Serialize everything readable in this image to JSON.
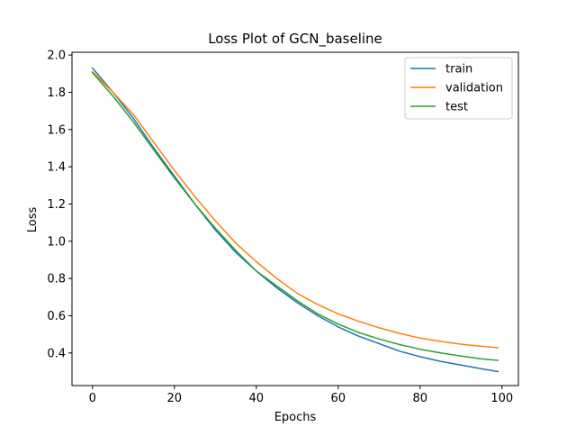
{
  "chart_data": {
    "type": "line",
    "title": "Loss Plot of GCN_baseline",
    "xlabel": "Epochs",
    "ylabel": "Loss",
    "xlim": [
      -5,
      104
    ],
    "ylim": [
      0.225,
      2.015
    ],
    "xticks": [
      0,
      20,
      40,
      60,
      80,
      100
    ],
    "yticks": [
      0.4,
      0.6,
      0.8,
      1.0,
      1.2,
      1.4,
      1.6,
      1.8,
      2.0
    ],
    "ytick_labels": [
      "0.4",
      "0.6",
      "0.8",
      "1.0",
      "1.2",
      "1.4",
      "1.6",
      "1.8",
      "2.0"
    ],
    "legend_position": "top-right",
    "grid": false,
    "series": [
      {
        "name": "train",
        "color": "#1f77b4",
        "x": [
          0,
          5,
          10,
          15,
          20,
          25,
          30,
          35,
          40,
          45,
          50,
          55,
          60,
          65,
          70,
          75,
          80,
          85,
          90,
          95,
          99
        ],
        "values": [
          1.93,
          1.8,
          1.66,
          1.5,
          1.35,
          1.2,
          1.06,
          0.94,
          0.84,
          0.75,
          0.67,
          0.6,
          0.54,
          0.49,
          0.45,
          0.41,
          0.38,
          0.355,
          0.335,
          0.315,
          0.3
        ]
      },
      {
        "name": "validation",
        "color": "#ff7f0e",
        "x": [
          0,
          5,
          10,
          15,
          20,
          25,
          30,
          35,
          40,
          45,
          50,
          55,
          60,
          65,
          70,
          75,
          80,
          85,
          90,
          95,
          99
        ],
        "values": [
          1.91,
          1.8,
          1.68,
          1.53,
          1.38,
          1.24,
          1.11,
          0.99,
          0.89,
          0.8,
          0.72,
          0.66,
          0.61,
          0.57,
          0.535,
          0.505,
          0.48,
          0.462,
          0.447,
          0.436,
          0.428
        ]
      },
      {
        "name": "test",
        "color": "#2ca02c",
        "x": [
          0,
          5,
          10,
          15,
          20,
          25,
          30,
          35,
          40,
          45,
          50,
          55,
          60,
          65,
          70,
          75,
          80,
          85,
          90,
          95,
          99
        ],
        "values": [
          1.905,
          1.78,
          1.64,
          1.49,
          1.34,
          1.2,
          1.07,
          0.95,
          0.84,
          0.76,
          0.68,
          0.61,
          0.555,
          0.51,
          0.475,
          0.445,
          0.42,
          0.4,
          0.383,
          0.368,
          0.36
        ]
      }
    ]
  }
}
